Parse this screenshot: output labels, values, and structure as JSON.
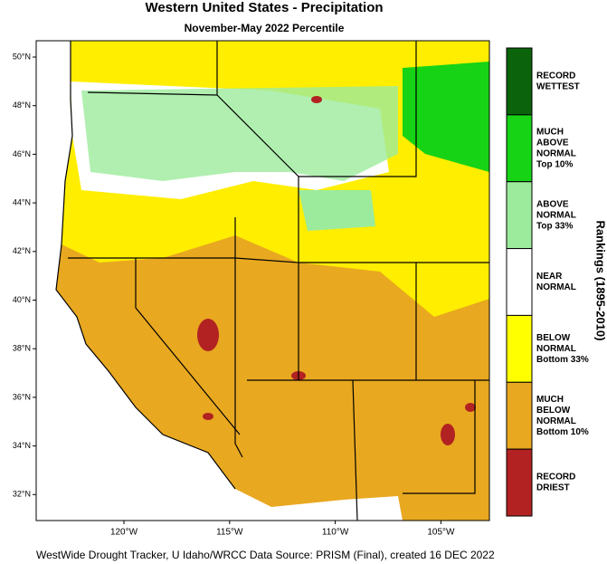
{
  "map": {
    "title": "Western United States - Precipitation",
    "subtitle": "November-May 2022 Percentile",
    "lat_ticks": [
      "50°N",
      "48°N",
      "46°N",
      "44°N",
      "42°N",
      "40°N",
      "38°N",
      "36°N",
      "34°N",
      "32°N"
    ],
    "lon_ticks": [
      "120°W",
      "115°W",
      "110°W",
      "105°W"
    ],
    "legend": {
      "title": "Rankings (1895-2010)",
      "items": [
        {
          "lines": [
            "RECORD",
            "WETTEST"
          ],
          "color": "#0b640b"
        },
        {
          "lines": [
            "MUCH",
            "ABOVE",
            "NORMAL",
            "Top 10%"
          ],
          "color": "#16d316"
        },
        {
          "lines": [
            "ABOVE",
            "NORMAL",
            "Top 33%"
          ],
          "color": "#9ceb9c"
        },
        {
          "lines": [
            "NEAR",
            "NORMAL"
          ],
          "color": "#ffffff"
        },
        {
          "lines": [
            "BELOW",
            "NORMAL",
            "Bottom 33%"
          ],
          "color": "#ffff00"
        },
        {
          "lines": [
            "MUCH",
            "BELOW",
            "NORMAL",
            "Bottom 10%"
          ],
          "color": "#e8a820"
        },
        {
          "lines": [
            "RECORD",
            "DRIEST"
          ],
          "color": "#b22222"
        }
      ]
    },
    "footer": "WestWide Drought Tracker, U Idaho/WRCC Data Source: PRISM (Final), created 16 DEC 2022"
  }
}
